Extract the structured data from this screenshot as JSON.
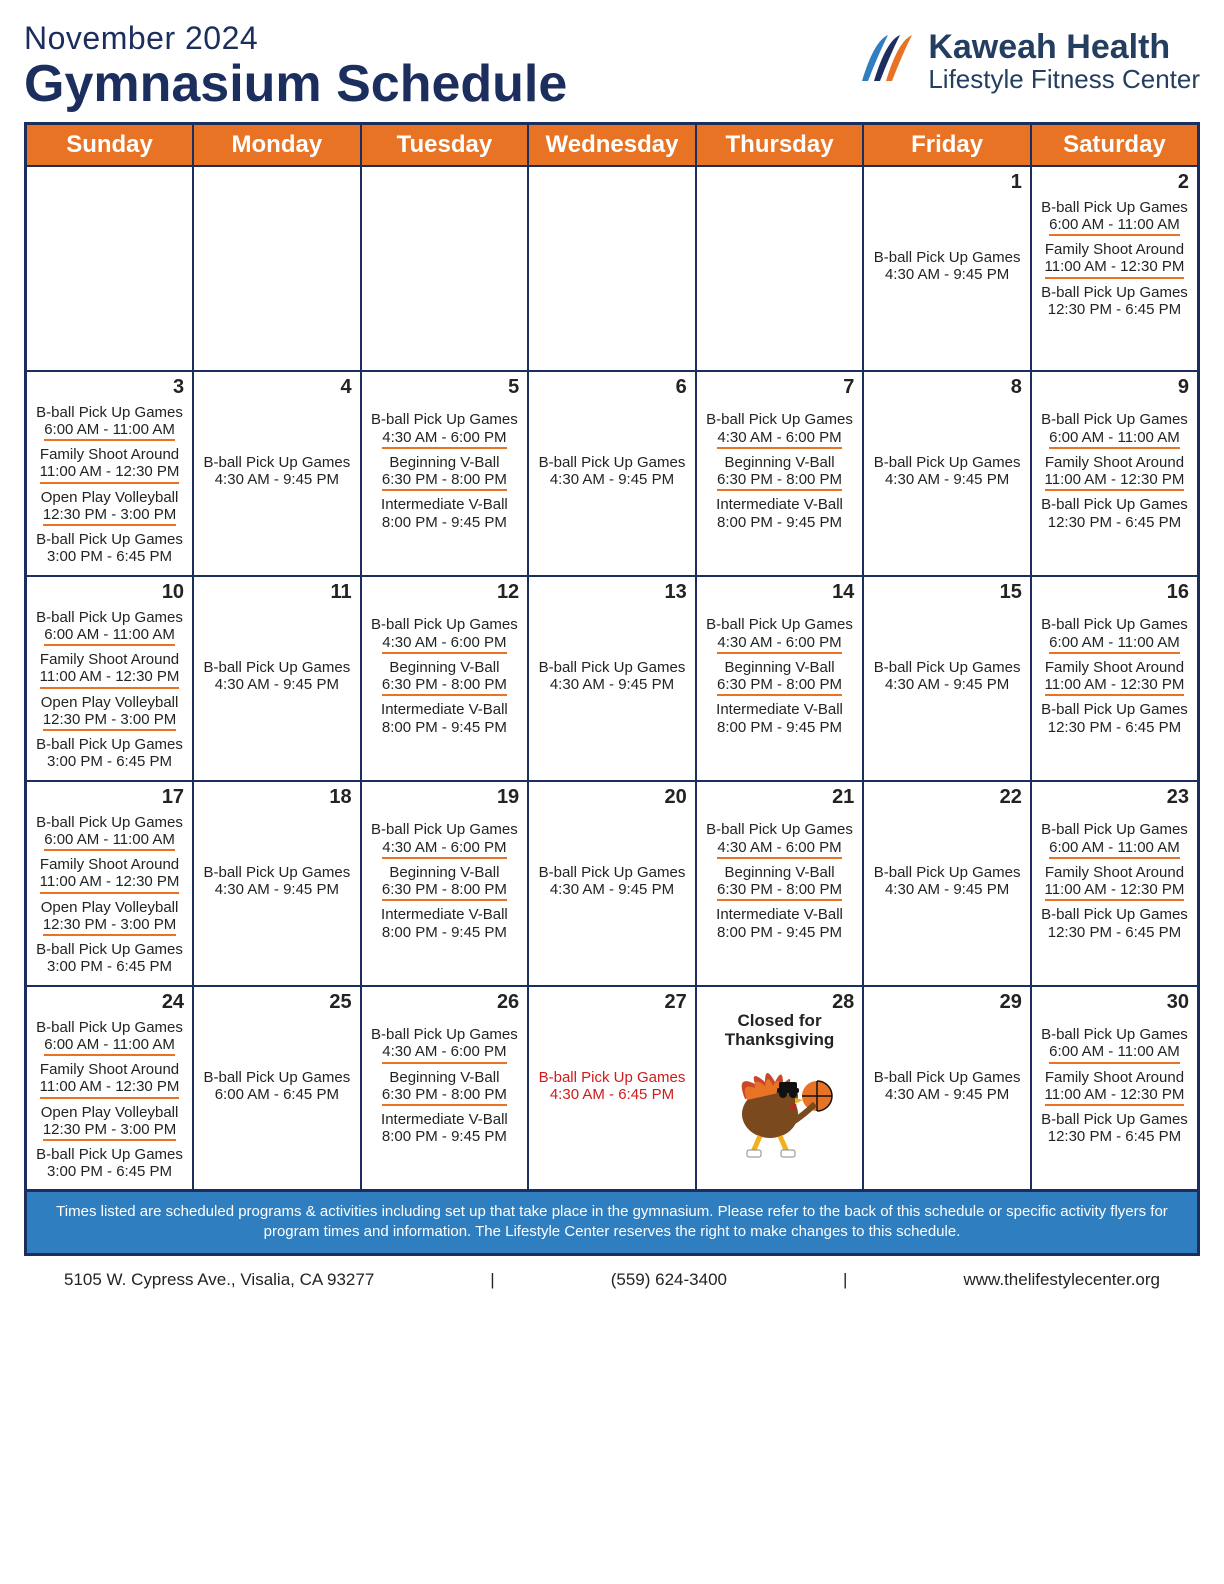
{
  "header": {
    "month_label": "November 2024",
    "title": "Gymnasium Schedule",
    "logo_line1": "Kaweah Health",
    "logo_line2": "Lifestyle Fitness Center"
  },
  "colors": {
    "header_bg": "#e87324",
    "border": "#1c2e5e",
    "underline": "#e87324",
    "disclaimer_bg": "#2f7ec0",
    "red": "#d11a1a"
  },
  "day_headers": [
    "Sunday",
    "Monday",
    "Tuesday",
    "Wednesday",
    "Thursday",
    "Friday",
    "Saturday"
  ],
  "weeks": [
    [
      {
        "num": "",
        "events": []
      },
      {
        "num": "",
        "events": []
      },
      {
        "num": "",
        "events": []
      },
      {
        "num": "",
        "events": []
      },
      {
        "num": "",
        "events": []
      },
      {
        "num": "1",
        "events": [
          {
            "title": "B-ball Pick Up Games",
            "time": "4:30 AM - 9:45 PM",
            "nounder": true
          }
        ]
      },
      {
        "num": "2",
        "topish": true,
        "events": [
          {
            "title": "B-ball Pick Up Games",
            "time": "6:00 AM - 11:00 AM"
          },
          {
            "title": "Family Shoot Around",
            "time": "11:00 AM - 12:30 PM"
          },
          {
            "title": "B-ball Pick Up Games",
            "time": "12:30 PM - 6:45 PM",
            "nounder": true
          }
        ]
      }
    ],
    [
      {
        "num": "3",
        "topish": true,
        "events": [
          {
            "title": "B-ball Pick Up Games",
            "time": "6:00 AM - 11:00 AM"
          },
          {
            "title": "Family Shoot Around",
            "time": "11:00 AM - 12:30 PM"
          },
          {
            "title": "Open Play Volleyball",
            "time": "12:30 PM - 3:00 PM"
          },
          {
            "title": "B-ball Pick Up Games",
            "time": "3:00 PM - 6:45 PM",
            "nounder": true
          }
        ]
      },
      {
        "num": "4",
        "events": [
          {
            "title": "B-ball Pick Up Games",
            "time": "4:30 AM - 9:45 PM",
            "nounder": true
          }
        ]
      },
      {
        "num": "5",
        "events": [
          {
            "title": "B-ball Pick Up Games",
            "time": "4:30 AM - 6:00 PM"
          },
          {
            "title": "Beginning V-Ball",
            "time": "6:30 PM - 8:00 PM"
          },
          {
            "title": "Intermediate V-Ball",
            "time": "8:00 PM - 9:45 PM",
            "nounder": true
          }
        ]
      },
      {
        "num": "6",
        "events": [
          {
            "title": "B-ball Pick Up Games",
            "time": "4:30 AM - 9:45 PM",
            "nounder": true
          }
        ]
      },
      {
        "num": "7",
        "events": [
          {
            "title": "B-ball Pick Up Games",
            "time": "4:30 AM - 6:00 PM"
          },
          {
            "title": "Beginning V-Ball",
            "time": "6:30 PM - 8:00 PM"
          },
          {
            "title": "Intermediate V-Ball",
            "time": "8:00 PM - 9:45 PM",
            "nounder": true
          }
        ]
      },
      {
        "num": "8",
        "events": [
          {
            "title": "B-ball Pick Up Games",
            "time": "4:30 AM - 9:45 PM",
            "nounder": true
          }
        ]
      },
      {
        "num": "9",
        "events": [
          {
            "title": "B-ball Pick Up Games",
            "time": "6:00 AM - 11:00 AM"
          },
          {
            "title": "Family Shoot Around",
            "time": "11:00 AM - 12:30 PM"
          },
          {
            "title": "B-ball Pick Up Games",
            "time": "12:30 PM - 6:45 PM",
            "nounder": true
          }
        ]
      }
    ],
    [
      {
        "num": "10",
        "topish": true,
        "events": [
          {
            "title": "B-ball Pick Up Games",
            "time": "6:00 AM - 11:00 AM"
          },
          {
            "title": "Family Shoot Around",
            "time": "11:00 AM - 12:30 PM"
          },
          {
            "title": "Open Play Volleyball",
            "time": "12:30 PM - 3:00 PM"
          },
          {
            "title": "B-ball Pick Up Games",
            "time": "3:00 PM - 6:45 PM",
            "nounder": true
          }
        ]
      },
      {
        "num": "11",
        "events": [
          {
            "title": "B-ball Pick Up Games",
            "time": "4:30 AM - 9:45 PM",
            "nounder": true
          }
        ]
      },
      {
        "num": "12",
        "events": [
          {
            "title": "B-ball Pick Up Games",
            "time": "4:30 AM - 6:00 PM"
          },
          {
            "title": "Beginning V-Ball",
            "time": "6:30 PM - 8:00 PM"
          },
          {
            "title": "Intermediate V-Ball",
            "time": "8:00 PM - 9:45 PM",
            "nounder": true
          }
        ]
      },
      {
        "num": "13",
        "events": [
          {
            "title": "B-ball Pick Up Games",
            "time": "4:30 AM - 9:45 PM",
            "nounder": true
          }
        ]
      },
      {
        "num": "14",
        "events": [
          {
            "title": "B-ball Pick Up Games",
            "time": "4:30 AM - 6:00 PM"
          },
          {
            "title": "Beginning V-Ball",
            "time": "6:30 PM - 8:00 PM"
          },
          {
            "title": "Intermediate V-Ball",
            "time": "8:00 PM - 9:45 PM",
            "nounder": true
          }
        ]
      },
      {
        "num": "15",
        "events": [
          {
            "title": "B-ball Pick Up Games",
            "time": "4:30 AM - 9:45 PM",
            "nounder": true
          }
        ]
      },
      {
        "num": "16",
        "events": [
          {
            "title": "B-ball Pick Up Games",
            "time": "6:00 AM - 11:00 AM"
          },
          {
            "title": "Family Shoot Around",
            "time": "11:00 AM - 12:30 PM"
          },
          {
            "title": "B-ball Pick Up Games",
            "time": "12:30 PM - 6:45 PM",
            "nounder": true
          }
        ]
      }
    ],
    [
      {
        "num": "17",
        "topish": true,
        "events": [
          {
            "title": "B-ball Pick Up Games",
            "time": "6:00 AM - 11:00 AM"
          },
          {
            "title": "Family Shoot Around",
            "time": "11:00 AM - 12:30 PM"
          },
          {
            "title": "Open Play Volleyball",
            "time": "12:30 PM - 3:00 PM"
          },
          {
            "title": "B-ball Pick Up Games",
            "time": "3:00 PM - 6:45 PM",
            "nounder": true
          }
        ]
      },
      {
        "num": "18",
        "events": [
          {
            "title": "B-ball Pick Up Games",
            "time": "4:30 AM - 9:45 PM",
            "nounder": true
          }
        ]
      },
      {
        "num": "19",
        "events": [
          {
            "title": "B-ball Pick Up Games",
            "time": "4:30 AM - 6:00 PM"
          },
          {
            "title": "Beginning V-Ball",
            "time": "6:30 PM - 8:00 PM"
          },
          {
            "title": "Intermediate V-Ball",
            "time": "8:00 PM - 9:45 PM",
            "nounder": true
          }
        ]
      },
      {
        "num": "20",
        "events": [
          {
            "title": "B-ball Pick Up Games",
            "time": "4:30 AM - 9:45 PM",
            "nounder": true
          }
        ]
      },
      {
        "num": "21",
        "events": [
          {
            "title": "B-ball Pick Up Games",
            "time": "4:30 AM - 6:00 PM"
          },
          {
            "title": "Beginning V-Ball",
            "time": "6:30 PM - 8:00 PM"
          },
          {
            "title": "Intermediate V-Ball",
            "time": "8:00 PM - 9:45 PM",
            "nounder": true
          }
        ]
      },
      {
        "num": "22",
        "events": [
          {
            "title": "B-ball Pick Up Games",
            "time": "4:30 AM - 9:45 PM",
            "nounder": true
          }
        ]
      },
      {
        "num": "23",
        "events": [
          {
            "title": "B-ball Pick Up Games",
            "time": "6:00 AM - 11:00 AM"
          },
          {
            "title": "Family Shoot Around",
            "time": "11:00 AM - 12:30 PM"
          },
          {
            "title": "B-ball Pick Up Games",
            "time": "12:30 PM - 6:45 PM",
            "nounder": true
          }
        ]
      }
    ],
    [
      {
        "num": "24",
        "topish": true,
        "events": [
          {
            "title": "B-ball Pick Up Games",
            "time": "6:00 AM - 11:00 AM"
          },
          {
            "title": "Family Shoot Around",
            "time": "11:00 AM - 12:30 PM"
          },
          {
            "title": "Open Play Volleyball",
            "time": "12:30 PM - 3:00 PM"
          },
          {
            "title": "B-ball Pick Up Games",
            "time": "3:00 PM - 6:45 PM",
            "nounder": true
          }
        ]
      },
      {
        "num": "25",
        "events": [
          {
            "title": "B-ball Pick Up Games",
            "time": "6:00 AM - 6:45 PM",
            "nounder": true
          }
        ]
      },
      {
        "num": "26",
        "events": [
          {
            "title": "B-ball Pick Up Games",
            "time": "4:30 AM - 6:00 PM"
          },
          {
            "title": "Beginning V-Ball",
            "time": "6:30 PM - 8:00 PM"
          },
          {
            "title": "Intermediate V-Ball",
            "time": "8:00 PM - 9:45 PM",
            "nounder": true
          }
        ]
      },
      {
        "num": "27",
        "events": [
          {
            "title": "B-ball Pick Up Games",
            "time": "4:30 AM - 6:45 PM",
            "red": true,
            "nounder": true
          }
        ]
      },
      {
        "num": "28",
        "holiday": "Closed for Thanksgiving",
        "events": []
      },
      {
        "num": "29",
        "events": [
          {
            "title": "B-ball Pick Up Games",
            "time": "4:30 AM - 9:45 PM",
            "nounder": true
          }
        ]
      },
      {
        "num": "30",
        "events": [
          {
            "title": "B-ball Pick Up Games",
            "time": "6:00 AM - 11:00 AM"
          },
          {
            "title": "Family Shoot Around",
            "time": "11:00 AM - 12:30 PM"
          },
          {
            "title": "B-ball Pick Up Games",
            "time": "12:30 PM - 6:45 PM",
            "nounder": true
          }
        ]
      }
    ]
  ],
  "disclaimer": "Times listed are scheduled programs & activities including set up that take place in the gymnasium. Please refer to the back of this schedule or specific activity flyers for program times and information.  The Lifestyle Center reserves the right to make changes to this schedule.",
  "footer": {
    "address": "5105 W. Cypress Ave.,  Visalia, CA 93277",
    "phone": "(559) 624-3400",
    "website": "www.thelifestylecenter.org"
  }
}
